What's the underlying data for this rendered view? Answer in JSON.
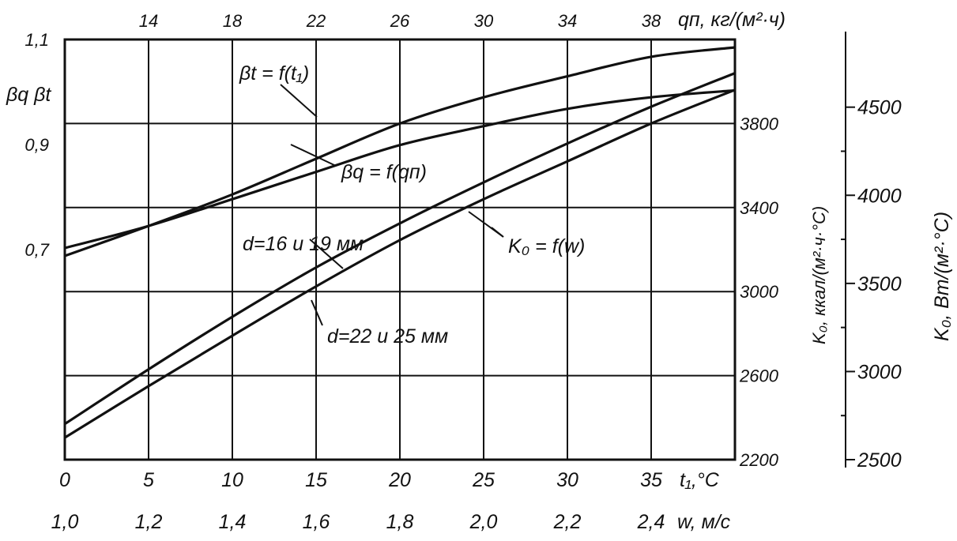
{
  "chart_data": {
    "type": "line",
    "title": "",
    "axes": {
      "x_t1": {
        "label": "t₁,°C",
        "ticks": [
          "0",
          "5",
          "10",
          "15",
          "20",
          "25",
          "30",
          "35"
        ],
        "range": [
          0,
          40
        ]
      },
      "x_w": {
        "label": "w, м/с",
        "ticks": [
          "1,0",
          "1,2",
          "1,4",
          "1,6",
          "1,8",
          "2,0",
          "2,2",
          "2,4"
        ],
        "range": [
          1.0,
          2.6
        ]
      },
      "x_qn": {
        "label": "qп, кг/(м²·ч)",
        "ticks": [
          "14",
          "18",
          "22",
          "26",
          "30",
          "34",
          "38"
        ],
        "range": [
          10,
          42
        ]
      },
      "y_beta": {
        "label": "βq βt",
        "ticks": [
          "1,1",
          "0,9",
          "0,7"
        ],
        "range": [
          0.3,
          1.1
        ]
      },
      "y_kcal": {
        "label": "K₀, ккал/(м²·ч·°C)",
        "ticks": [
          "3800",
          "3400",
          "3000",
          "2600",
          "2200"
        ],
        "range": [
          2200,
          4200
        ]
      },
      "y_w": {
        "label": "K₀, Вт/(м²·°C)",
        "ticks": [
          "4500",
          "4000",
          "3500",
          "3000",
          "2500"
        ],
        "range": [
          2500,
          4884
        ]
      }
    },
    "grid": true,
    "series": [
      {
        "name": "βt = f(t₁)",
        "x_axis": "x_t1",
        "y_axis": "y_beta",
        "x": [
          0,
          5,
          10,
          15,
          20,
          25,
          30,
          35,
          40
        ],
        "y": [
          0.688,
          0.745,
          0.805,
          0.873,
          0.94,
          0.99,
          1.03,
          1.067,
          1.085
        ]
      },
      {
        "name": "βq = f(qп)",
        "x_axis": "x_qn",
        "y_axis": "y_beta",
        "x": [
          10,
          14,
          18,
          22,
          26,
          30,
          34,
          38,
          42
        ],
        "y": [
          0.703,
          0.745,
          0.796,
          0.848,
          0.899,
          0.935,
          0.968,
          0.99,
          1.003
        ]
      },
      {
        "name": "d=16 и 19 мм",
        "x_axis": "x_w",
        "y_axis": "y_kcal",
        "x": [
          1.0,
          1.2,
          1.4,
          1.6,
          1.8,
          2.0,
          2.2,
          2.4,
          2.6
        ],
        "y": [
          2370,
          2630,
          2880,
          3115,
          3325,
          3520,
          3705,
          3880,
          4040
        ]
      },
      {
        "name": "d=22 и 25 мм",
        "x_axis": "x_w",
        "y_axis": "y_kcal",
        "x": [
          1.0,
          1.2,
          1.4,
          1.6,
          1.8,
          2.0,
          2.2,
          2.4,
          2.6
        ],
        "y": [
          2305,
          2550,
          2790,
          3025,
          3245,
          3440,
          3620,
          3800,
          3960
        ]
      }
    ],
    "annotations": {
      "beta_t": "βt = f(t₁)",
      "beta_q": "βq = f(qп)",
      "k0": "K₀ = f(w)",
      "d1": "d=16 и 19 мм",
      "d2": "d=22 и 25 мм"
    }
  }
}
